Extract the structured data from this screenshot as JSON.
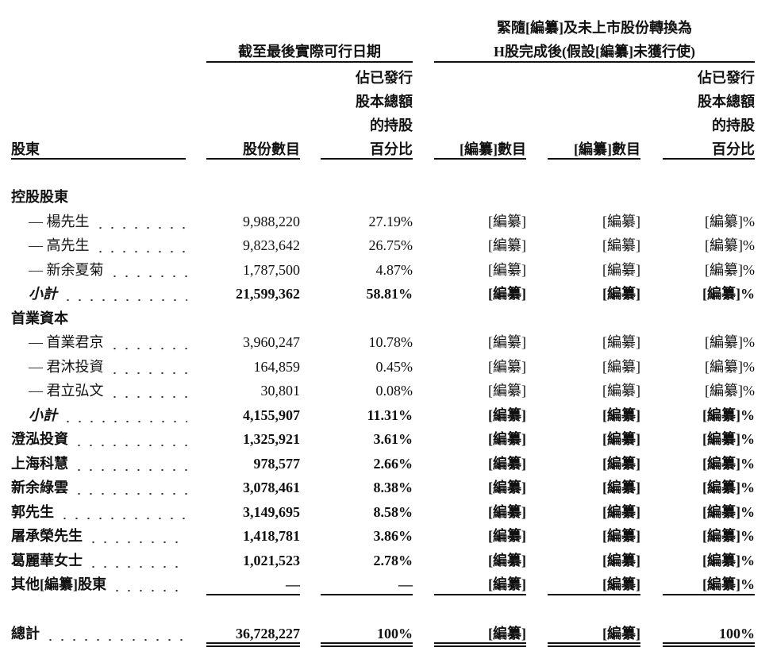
{
  "header": {
    "group1": "截至最後實際可行日期",
    "group2_line1": "緊隨[編纂]及未上市股份轉換為",
    "group2_line2": "H股完成後(假設[編纂]未獲行使)",
    "pct_header_lines": [
      "佔已發行",
      "股本總額",
      "的持股",
      "百分比"
    ],
    "col_shareholder": "股東",
    "col_shares": "股份數目",
    "col_redacted1": "[編纂]數目",
    "col_redacted2": "[編纂]數目"
  },
  "rows": [
    {
      "type": "group",
      "name": "控股股東"
    },
    {
      "type": "sub",
      "name": "— 楊先生",
      "shares": "9,988,220",
      "pct": "27.19%",
      "c3": "[編纂]",
      "c4": "[編纂]",
      "c5": "[編纂]%"
    },
    {
      "type": "sub",
      "name": "— 高先生",
      "shares": "9,823,642",
      "pct": "26.75%",
      "c3": "[編纂]",
      "c4": "[編纂]",
      "c5": "[編纂]%"
    },
    {
      "type": "sub",
      "name": "— 新余夏菊",
      "shares": "1,787,500",
      "pct": "4.87%",
      "c3": "[編纂]",
      "c4": "[編纂]",
      "c5": "[編纂]%"
    },
    {
      "type": "subtotal",
      "name": "小計",
      "shares": "21,599,362",
      "pct": "58.81%",
      "c3": "[編纂]",
      "c4": "[編纂]",
      "c5": "[編纂]%"
    },
    {
      "type": "group",
      "name": "首業資本"
    },
    {
      "type": "sub",
      "name": "— 首業君京",
      "shares": "3,960,247",
      "pct": "10.78%",
      "c3": "[編纂]",
      "c4": "[編纂]",
      "c5": "[編纂]%"
    },
    {
      "type": "sub",
      "name": "— 君沐投資",
      "shares": "164,859",
      "pct": "0.45%",
      "c3": "[編纂]",
      "c4": "[編纂]",
      "c5": "[編纂]%"
    },
    {
      "type": "sub",
      "name": "— 君立弘文",
      "shares": "30,801",
      "pct": "0.08%",
      "c3": "[編纂]",
      "c4": "[編纂]",
      "c5": "[編纂]%"
    },
    {
      "type": "subtotal",
      "name": "小計",
      "shares": "4,155,907",
      "pct": "11.31%",
      "c3": "[編纂]",
      "c4": "[編纂]",
      "c5": "[編纂]%"
    },
    {
      "type": "main",
      "name": "澄泓投資",
      "shares": "1,325,921",
      "pct": "3.61%",
      "c3": "[編纂]",
      "c4": "[編纂]",
      "c5": "[編纂]%"
    },
    {
      "type": "main",
      "name": "上海科慧",
      "shares": "978,577",
      "pct": "2.66%",
      "c3": "[編纂]",
      "c4": "[編纂]",
      "c5": "[編纂]%"
    },
    {
      "type": "main",
      "name": "新余綠雲",
      "shares": "3,078,461",
      "pct": "8.38%",
      "c3": "[編纂]",
      "c4": "[編纂]",
      "c5": "[編纂]%"
    },
    {
      "type": "main",
      "name": "郭先生",
      "shares": "3,149,695",
      "pct": "8.58%",
      "c3": "[編纂]",
      "c4": "[編纂]",
      "c5": "[編纂]%"
    },
    {
      "type": "main",
      "name": "屠承榮先生",
      "shares": "1,418,781",
      "pct": "3.86%",
      "c3": "[編纂]",
      "c4": "[編纂]",
      "c5": "[編纂]%"
    },
    {
      "type": "main",
      "name": "葛麗華女士",
      "shares": "1,021,523",
      "pct": "2.78%",
      "c3": "[編纂]",
      "c4": "[編纂]",
      "c5": "[編纂]%"
    },
    {
      "type": "main",
      "name": "其他[編纂]股東",
      "shares": "—",
      "pct": "—",
      "c3": "[編纂]",
      "c4": "[編纂]",
      "c5": "[編纂]%"
    }
  ],
  "total": {
    "name": "總計",
    "shares": "36,728,227",
    "pct": "100%",
    "c3": "[編纂]",
    "c4": "[編纂]",
    "c5": "100%"
  }
}
